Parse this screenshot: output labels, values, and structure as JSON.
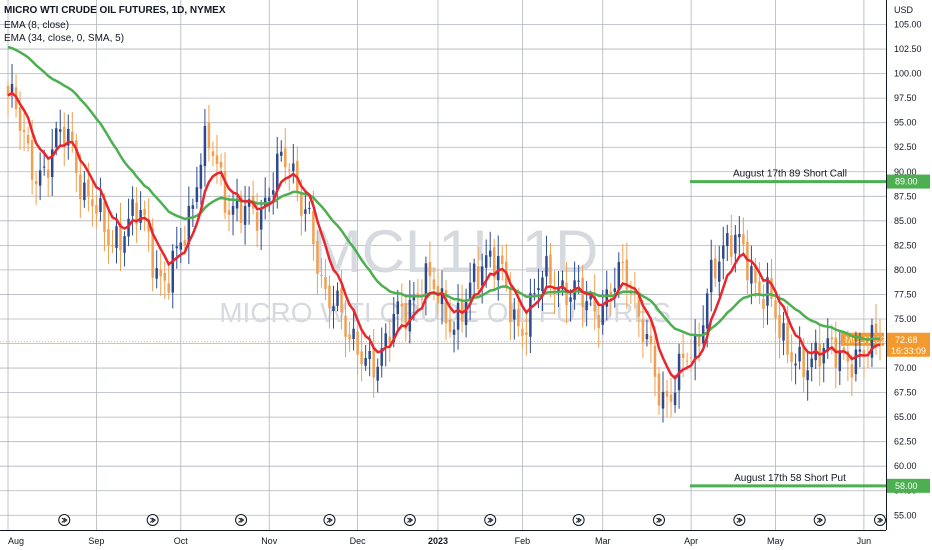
{
  "header": {
    "title": "MICRO WTI CRUDE OIL FUTURES, 1D, NYMEX",
    "indicator1": "EMA (8, close)",
    "indicator2": "EMA (34, close, 0, SMA, 5)"
  },
  "watermark": {
    "symbol": "MCL1!, 1D",
    "name": "MICRO WTI CRUDE OIL FUTURES"
  },
  "colors": {
    "up": "#2e4a8f",
    "down": "#f0a050",
    "ema_fast": "#e8262d",
    "ema_slow": "#4caf50",
    "level": "#4caf50",
    "price_tag": "#f39a2e",
    "grid": "#b2b5be"
  },
  "chart_data": {
    "type": "candlestick",
    "currency": "USD",
    "ylim": [
      53.5,
      107.5
    ],
    "y_ticks": [
      "105.00",
      "102.50",
      "100.00",
      "97.50",
      "95.00",
      "92.50",
      "90.00",
      "87.50",
      "85.00",
      "82.50",
      "80.00",
      "77.50",
      "75.00",
      "72.50",
      "70.00",
      "67.50",
      "65.00",
      "62.50",
      "60.00",
      "57.50",
      "55.00"
    ],
    "x_ticks": [
      "Aug",
      "Sep",
      "Oct",
      "Nov",
      "Dec",
      "2023",
      "Feb",
      "Mar",
      "Apr",
      "May",
      "Jun"
    ],
    "last_price": "72.68",
    "last_label": "MCLN2023",
    "countdown": "16:33:09",
    "levels": [
      {
        "label": "August 17th 89 Short Call",
        "price": 89.0,
        "tag": "89.00"
      },
      {
        "label": "August 17th 58 Short Put",
        "price": 58.0,
        "tag": "58.00"
      }
    ],
    "close_anchors": [
      [
        0,
        97.0
      ],
      [
        8,
        90.0
      ],
      [
        14,
        93.5
      ],
      [
        20,
        88.0
      ],
      [
        26,
        82.0
      ],
      [
        32,
        87.0
      ],
      [
        38,
        78.0
      ],
      [
        44,
        84.5
      ],
      [
        50,
        92.5
      ],
      [
        56,
        86.5
      ],
      [
        62,
        85.0
      ],
      [
        68,
        92.0
      ],
      [
        74,
        85.5
      ],
      [
        80,
        77.5
      ],
      [
        86,
        72.0
      ],
      [
        92,
        71.0
      ],
      [
        98,
        75.5
      ],
      [
        104,
        79.5
      ],
      [
        110,
        74.0
      ],
      [
        116,
        79.5
      ],
      [
        122,
        80.5
      ],
      [
        128,
        74.0
      ],
      [
        134,
        79.5
      ],
      [
        140,
        78.0
      ],
      [
        146,
        75.5
      ],
      [
        152,
        80.0
      ],
      [
        158,
        74.0
      ],
      [
        164,
        66.5
      ],
      [
        170,
        71.5
      ],
      [
        176,
        80.5
      ],
      [
        182,
        83.0
      ],
      [
        188,
        77.5
      ],
      [
        194,
        72.0
      ],
      [
        200,
        70.5
      ],
      [
        206,
        72.0
      ],
      [
        212,
        71.0
      ],
      [
        217,
        72.68
      ]
    ]
  }
}
